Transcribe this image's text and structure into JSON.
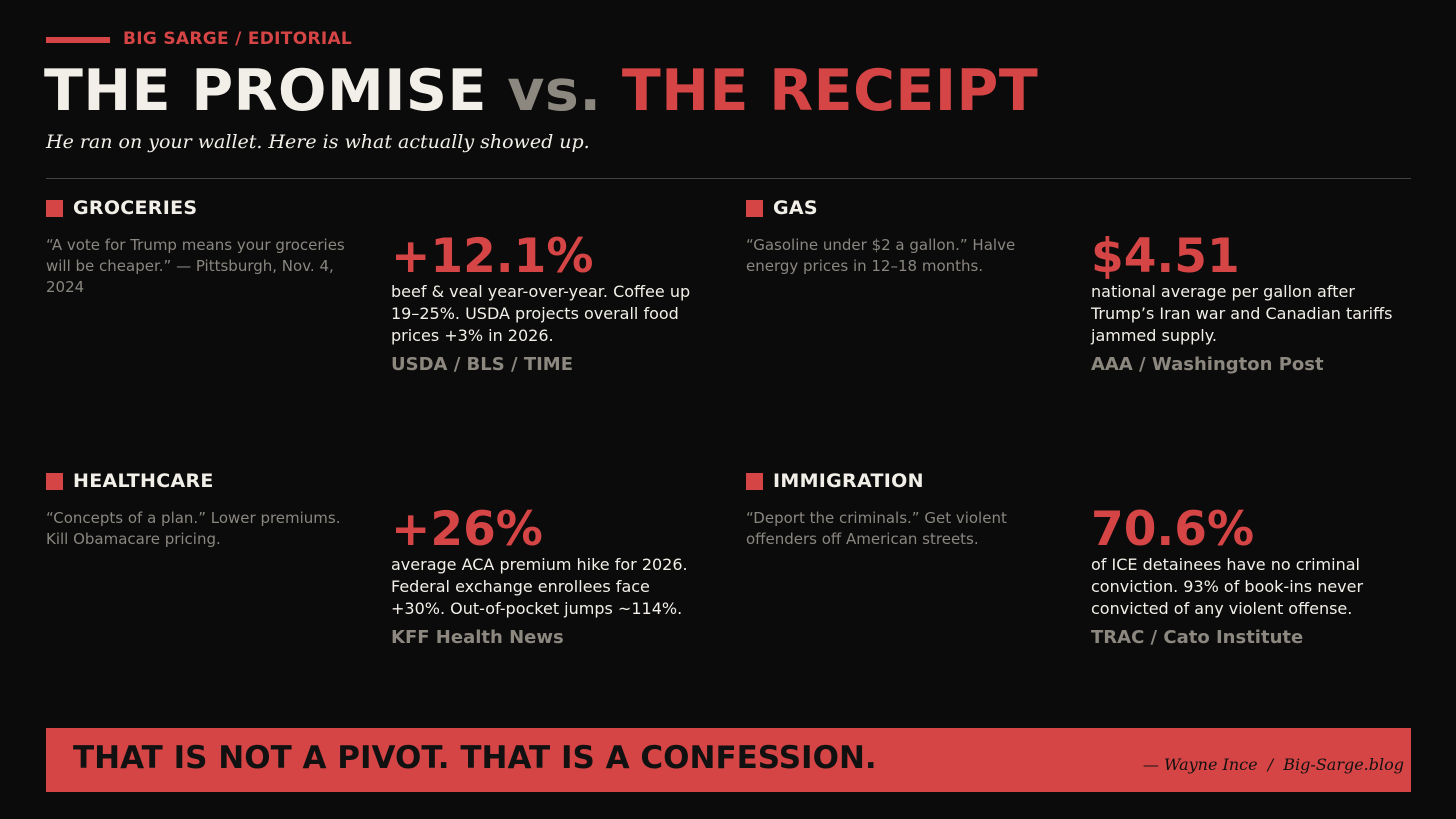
{
  "header": {
    "kicker": "BIG SARGE / EDITORIAL",
    "title": {
      "promise": "THE PROMISE",
      "versus": "vs.",
      "receipt": "THE RECEIPT"
    },
    "subtitle": "He ran on your wallet. Here is what actually showed up."
  },
  "sections": [
    {
      "label": "GROCERIES",
      "quote": "“A vote for Trump means your groceries will be cheaper.” — Pittsburgh, Nov. 4, 2024",
      "stat": "+12.1%",
      "detail": "beef & veal year-over-year. Coffee up 19–25%. USDA projects overall food prices +3% in 2026.",
      "source": "USDA / BLS / TIME"
    },
    {
      "label": "GAS",
      "quote": "“Gasoline under $2 a gallon.” Halve energy prices in 12–18 months.",
      "stat": "$4.51",
      "detail": "national average per gallon after Trump’s Iran war and Canadian tariffs jammed supply.",
      "source": "AAA / Washington Post"
    },
    {
      "label": "HEALTHCARE",
      "quote": "“Concepts of a plan.” Lower premiums. Kill Obamacare pricing.",
      "stat": "+26%",
      "detail": "average ACA premium hike for 2026. Federal exchange enrollees face +30%. Out-of-pocket jumps ~114%.",
      "source": "KFF Health News"
    },
    {
      "label": "IMMIGRATION",
      "quote": "“Deport the criminals.” Get violent offenders off American streets.",
      "stat": "70.6%",
      "detail": "of ICE detainees have no criminal conviction. 93% of book-ins never convicted of any violent offense.",
      "source": "TRAC / Cato Institute"
    }
  ],
  "footer": {
    "statement": "THAT IS NOT A PIVOT. THAT IS A CONFESSION.",
    "credit": "— Wayne Ince  /  Big-Sarge.blog"
  }
}
